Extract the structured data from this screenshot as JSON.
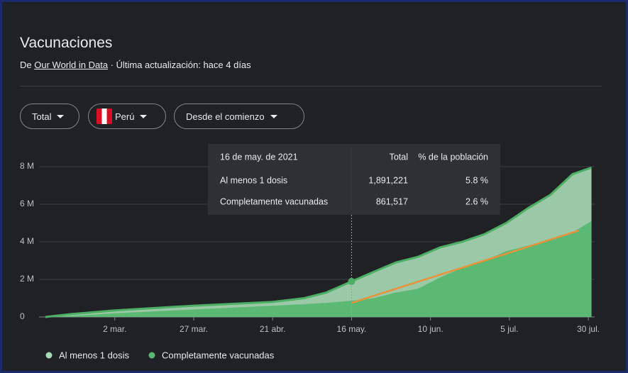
{
  "header": {
    "title": "Vacunaciones",
    "source_prefix": "De",
    "source": "Our World in Data",
    "updated": "· Última actualización: hace 4 días"
  },
  "controls": {
    "metric": "Total",
    "country": "Perú",
    "range": "Desde el comienzo"
  },
  "chart_data": {
    "type": "area",
    "x": [
      39,
      47,
      61,
      86,
      111,
      121,
      128,
      136,
      143,
      150,
      157,
      164,
      171,
      178,
      185,
      192,
      199,
      206,
      212
    ],
    "series": [
      {
        "name": "Al menos 1 dosis",
        "color": "#a8dab5",
        "line_color": "#4caf64",
        "values": [
          0,
          150000,
          350000,
          600000,
          800000,
          1000000,
          1300000,
          1891221,
          2400000,
          2900000,
          3200000,
          3700000,
          4000000,
          4400000,
          5000000,
          5800000,
          6500000,
          7600000,
          7950000
        ]
      },
      {
        "name": "Completamente vacunadas",
        "color": "#5bb974",
        "values": [
          0,
          50000,
          200000,
          400000,
          600000,
          680000,
          750000,
          861517,
          1000000,
          1300000,
          1500000,
          2100000,
          2600000,
          3000000,
          3500000,
          3800000,
          4100000,
          4500000,
          5100000
        ]
      }
    ],
    "trend_line": {
      "color": "#e8923a",
      "x": [
        136,
        208
      ],
      "values": [
        750000,
        4600000
      ]
    },
    "xlim": [
      37,
      213
    ],
    "xticks": [
      {
        "value": 61,
        "label": "2 mar."
      },
      {
        "value": 86,
        "label": "27 mar."
      },
      {
        "value": 111,
        "label": "21 abr."
      },
      {
        "value": 136,
        "label": "16 may."
      },
      {
        "value": 161,
        "label": "10 jun."
      },
      {
        "value": 186,
        "label": "5 jul."
      },
      {
        "value": 211,
        "label": "30 jul."
      }
    ],
    "ylim": [
      0,
      8000000
    ],
    "yticks": [
      0,
      {
        "value": 2000000,
        "label": "2 M"
      },
      {
        "value": 4000000,
        "label": "4 M"
      },
      {
        "value": 6000000,
        "label": "6 M"
      },
      {
        "value": 8000000,
        "label": "8 M"
      }
    ],
    "grid": true,
    "tooltip": {
      "hover_x": 136,
      "header": [
        "16 de may. de 2021",
        "Total",
        "% de la población"
      ],
      "rows": [
        [
          "Al menos 1 dosis",
          "1,891,221",
          "5.8 %"
        ],
        [
          "Completamente vacunadas",
          "861,517",
          "2.6 %"
        ]
      ]
    }
  }
}
